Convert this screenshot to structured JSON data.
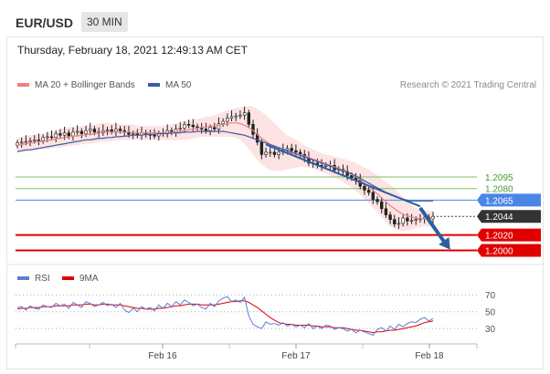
{
  "header": {
    "symbol": "EUR/USD",
    "timeframe": "30 MIN",
    "timestamp": "Thursday, February 18, 2021 12:49:13 AM CET"
  },
  "legend": {
    "ma20_label": "MA 20 + Bollinger Bands",
    "ma50_label": "MA 50",
    "copyright": "Research © 2021 Trading Central",
    "rsi_label": "RSI",
    "rsi_ma_label": "9MA"
  },
  "colors": {
    "ma20": "#f08080",
    "ma50": "#3b5ca8",
    "bollinger_fill": "#fde3e3",
    "level_green": "#7fc25a",
    "level_blue": "#4a86e8",
    "level_red": "#e00000",
    "level_current": "#333333",
    "arrow": "#2c5fa0",
    "candle_up": "#ffffff",
    "candle_down": "#222222",
    "rsi_line": "#5b7fd6",
    "rsi_ma": "#e00000"
  },
  "chart_data": [
    {
      "type": "line",
      "subtype": "candlestick",
      "title": "EUR/USD 30 MIN",
      "x_ticks": [
        "Feb 16",
        "Feb 17",
        "Feb 18"
      ],
      "price_levels": [
        {
          "value": 1.2095,
          "label": "1.2095",
          "style": "green"
        },
        {
          "value": 1.208,
          "label": "1.2080",
          "style": "green"
        },
        {
          "value": 1.2065,
          "label": "1.2065",
          "style": "blue"
        },
        {
          "value": 1.2044,
          "label": "1.2044",
          "style": "current"
        },
        {
          "value": 1.202,
          "label": "1.2020",
          "style": "red"
        },
        {
          "value": 1.2,
          "label": "1.2000",
          "style": "red"
        }
      ],
      "ylim": [
        1.199,
        1.22
      ],
      "close_series": [
        1.2139,
        1.214,
        1.2141,
        1.2142,
        1.2143,
        1.2142,
        1.2146,
        1.2147,
        1.2146,
        1.2151,
        1.2149,
        1.2152,
        1.2148,
        1.2153,
        1.2154,
        1.2151,
        1.2155,
        1.2157,
        1.2153,
        1.2152,
        1.2155,
        1.2156,
        1.2154,
        1.2157,
        1.2155,
        1.2153,
        1.215,
        1.2151,
        1.2149,
        1.2152,
        1.215,
        1.2149,
        1.2148,
        1.2151,
        1.2152,
        1.2155,
        1.2153,
        1.2157,
        1.2158,
        1.2163,
        1.2162,
        1.216,
        1.2159,
        1.2157,
        1.2155,
        1.2159,
        1.2157,
        1.2164,
        1.2167,
        1.2171,
        1.2173,
        1.2174,
        1.2175,
        1.2178,
        1.2163,
        1.215,
        1.214,
        1.2124,
        1.2127,
        1.2127,
        1.2124,
        1.2127,
        1.213,
        1.2132,
        1.2129,
        1.2127,
        1.2124,
        1.212,
        1.2113,
        1.2113,
        1.211,
        1.2109,
        1.211,
        1.211,
        1.2104,
        1.2105,
        1.2102,
        1.2097,
        1.2094,
        1.2091,
        1.2083,
        1.2078,
        1.2075,
        1.2066,
        1.2063,
        1.2054,
        1.2046,
        1.204,
        1.2034,
        1.2035,
        1.2042,
        1.2038,
        1.2039,
        1.204,
        1.2041,
        1.2043,
        1.2041,
        1.2044
      ],
      "ma20_series": [
        1.2136,
        1.2137,
        1.2138,
        1.2139,
        1.214,
        1.2141,
        1.2141,
        1.2142,
        1.2143,
        1.2144,
        1.2145,
        1.2146,
        1.2147,
        1.2148,
        1.2148,
        1.2149,
        1.215,
        1.215,
        1.2151,
        1.2152,
        1.2153,
        1.2153,
        1.2153,
        1.2153,
        1.2153,
        1.2153,
        1.2153,
        1.2153,
        1.2152,
        1.2152,
        1.2152,
        1.2152,
        1.2152,
        1.2152,
        1.2152,
        1.2152,
        1.2153,
        1.2153,
        1.2154,
        1.2155,
        1.2156,
        1.2157,
        1.2158,
        1.2159,
        1.216,
        1.216,
        1.2161,
        1.2162,
        1.2163,
        1.2164,
        1.2165,
        1.2165,
        1.2164,
        1.2162,
        1.2159,
        1.2155,
        1.215,
        1.2145,
        1.2141,
        1.2137,
        1.2134,
        1.2131,
        1.2128,
        1.2127,
        1.2126,
        1.2125,
        1.2124,
        1.2122,
        1.212,
        1.2118,
        1.2116,
        1.2114,
        1.2112,
        1.211,
        1.2108,
        1.2106,
        1.2104,
        1.2101,
        1.2098,
        1.2095,
        1.2091,
        1.2087,
        1.2083,
        1.2078,
        1.2073,
        1.2068,
        1.2063,
        1.2058,
        1.2054,
        1.205,
        1.2047,
        1.2045,
        1.2043,
        1.2042,
        1.2041,
        1.2041,
        1.2041,
        1.2041
      ],
      "ma50_series": [
        1.2128,
        1.2129,
        1.213,
        1.213,
        1.2131,
        1.2132,
        1.2133,
        1.2134,
        1.2135,
        1.2136,
        1.2137,
        1.2138,
        1.2139,
        1.214,
        1.2141,
        1.2142,
        1.2143,
        1.2143,
        1.2144,
        1.2145,
        1.2145,
        1.2146,
        1.2146,
        1.2147,
        1.2147,
        1.2148,
        1.2148,
        1.2149,
        1.2149,
        1.2149,
        1.215,
        1.215,
        1.215,
        1.2151,
        1.2151,
        1.2151,
        1.2152,
        1.2152,
        1.2152,
        1.2153,
        1.2153,
        1.2153,
        1.2154,
        1.2154,
        1.2154,
        1.2154,
        1.2154,
        1.2154,
        1.2154,
        1.2153,
        1.2152,
        1.2151,
        1.215,
        1.2149,
        1.2147,
        1.2145,
        1.2143,
        1.2141,
        1.2139,
        1.2137,
        1.2135,
        1.2133,
        1.2131,
        1.2129,
        1.2127,
        1.2125,
        1.2123,
        1.2121,
        1.2119,
        1.2117,
        1.2115,
        1.2113,
        1.2111,
        1.2109,
        1.2107,
        1.2105,
        1.2103,
        1.2101,
        1.2099,
        1.2096,
        1.2093,
        1.209,
        1.2087,
        1.2084,
        1.2081,
        1.2078,
        1.2075,
        1.2072,
        1.207,
        1.2068,
        1.2066,
        1.2065,
        1.2064,
        1.2064,
        1.2064,
        1.2064,
        1.2064,
        1.2064
      ],
      "band_width": [
        0.001,
        0.001,
        0.001,
        0.001,
        0.001,
        0.001,
        0.001,
        0.0011,
        0.0011,
        0.0011,
        0.0012,
        0.0012,
        0.0012,
        0.0012,
        0.0012,
        0.0012,
        0.0012,
        0.0012,
        0.0012,
        0.0012,
        0.0012,
        0.0012,
        0.0011,
        0.0011,
        0.001,
        0.001,
        0.001,
        0.001,
        0.0009,
        0.0009,
        0.0009,
        0.0009,
        0.0009,
        0.0009,
        0.0009,
        0.001,
        0.001,
        0.0011,
        0.0011,
        0.0012,
        0.0012,
        0.0012,
        0.0012,
        0.0012,
        0.0013,
        0.0013,
        0.0014,
        0.0015,
        0.0016,
        0.0017,
        0.0018,
        0.0019,
        0.0021,
        0.0024,
        0.0028,
        0.0031,
        0.0033,
        0.0034,
        0.0034,
        0.0033,
        0.0031,
        0.0028,
        0.0025,
        0.0022,
        0.002,
        0.0018,
        0.0016,
        0.0014,
        0.0013,
        0.0012,
        0.0012,
        0.0012,
        0.0012,
        0.0013,
        0.0013,
        0.0014,
        0.0015,
        0.0016,
        0.0017,
        0.0018,
        0.0019,
        0.002,
        0.0022,
        0.0023,
        0.0024,
        0.0025,
        0.0026,
        0.0027,
        0.0026,
        0.0024,
        0.0022,
        0.0019,
        0.0016,
        0.0013,
        0.0011,
        0.001,
        0.001,
        0.001
      ],
      "trend_line": {
        "from": [
          58,
          1.2137
        ],
        "to": [
          94,
          1.2057
        ]
      },
      "forecast_arrow": {
        "from": [
          94,
          1.2055
        ],
        "to": [
          101,
          1.2001
        ]
      }
    },
    {
      "type": "line",
      "title": "RSI",
      "y_ticks": [
        70,
        50,
        30
      ],
      "ylim": [
        15,
        80
      ],
      "rsi_series": [
        55,
        56,
        52,
        57,
        54,
        53,
        58,
        56,
        55,
        60,
        57,
        59,
        54,
        61,
        58,
        55,
        62,
        60,
        56,
        58,
        61,
        57,
        59,
        55,
        60,
        52,
        49,
        54,
        50,
        56,
        53,
        55,
        51,
        58,
        54,
        60,
        56,
        62,
        58,
        64,
        61,
        57,
        59,
        55,
        53,
        60,
        56,
        63,
        66,
        68,
        62,
        64,
        61,
        67,
        45,
        35,
        32,
        30,
        38,
        35,
        36,
        34,
        37,
        33,
        35,
        32,
        34,
        31,
        36,
        30,
        33,
        30,
        34,
        33,
        29,
        31,
        30,
        27,
        29,
        25,
        28,
        26,
        24,
        22,
        29,
        31,
        27,
        33,
        29,
        35,
        32,
        36,
        38,
        37,
        41,
        43,
        39,
        42
      ],
      "ma_series": [
        53,
        54,
        54,
        55,
        55,
        55,
        56,
        56,
        56,
        57,
        57,
        57,
        57,
        58,
        58,
        58,
        59,
        59,
        58,
        58,
        59,
        59,
        58,
        58,
        58,
        57,
        56,
        55,
        54,
        54,
        53,
        53,
        53,
        54,
        54,
        55,
        56,
        57,
        57,
        58,
        59,
        59,
        59,
        58,
        58,
        58,
        58,
        59,
        60,
        61,
        62,
        62,
        63,
        63,
        61,
        58,
        55,
        51,
        47,
        43,
        40,
        37,
        36,
        35,
        35,
        34,
        34,
        34,
        34,
        33,
        33,
        32,
        32,
        32,
        31,
        31,
        31,
        30,
        29,
        28,
        28,
        27,
        26,
        25,
        26,
        26,
        27,
        28,
        28,
        29,
        30,
        31,
        32,
        33,
        35,
        37,
        38,
        39
      ]
    }
  ]
}
